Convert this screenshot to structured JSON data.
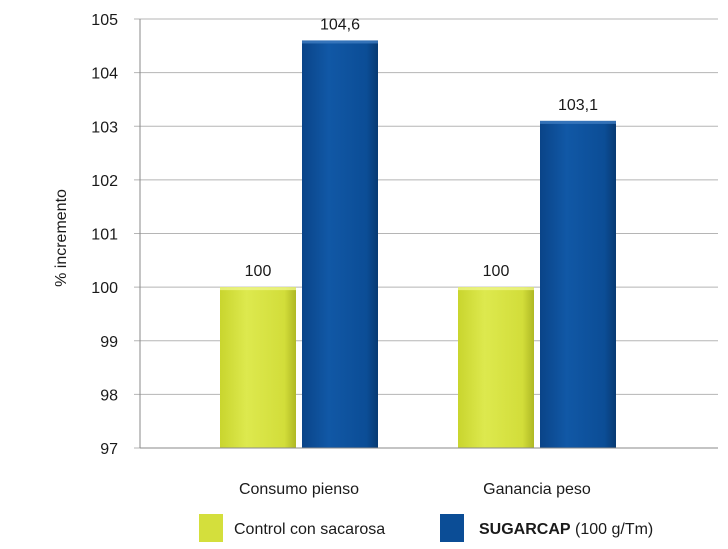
{
  "chart_data": {
    "type": "bar",
    "title": "",
    "xlabel": "",
    "ylabel": "% incremento",
    "ylim": [
      97,
      105
    ],
    "yticks": [
      "97",
      "98",
      "99",
      "100",
      "101",
      "102",
      "103",
      "104",
      "105"
    ],
    "grid": true,
    "legend_position": "bottom",
    "categories": [
      "Consumo pienso",
      "Ganancia peso"
    ],
    "series": [
      {
        "name": "Control con sacarosa",
        "color": "#d4df3c",
        "values": [
          100,
          100
        ],
        "value_labels": [
          "100",
          "100"
        ]
      },
      {
        "name": "SUGARCAP (100 g/Tm)",
        "legend_bold": "SUGARCAP",
        "legend_rest": " (100 g/Tm)",
        "color": "#0b4d96",
        "values": [
          104.6,
          103.1
        ],
        "value_labels": [
          "104,6",
          "103,1"
        ]
      }
    ]
  }
}
